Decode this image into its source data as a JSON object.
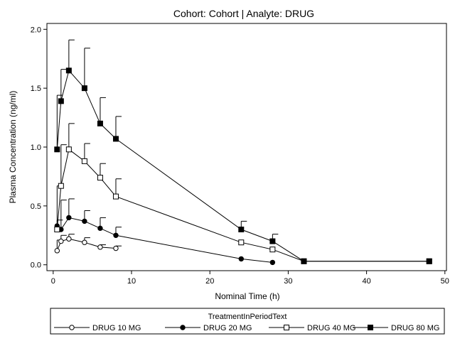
{
  "chart_data": {
    "type": "line",
    "title": "Cohort: Cohort | Analyte: DRUG",
    "xlabel": "Nominal Time (h)",
    "ylabel": "Plasma Concentration (ng/ml)",
    "xlim": [
      -0.8,
      50.2
    ],
    "ylim": [
      -0.05,
      2.05
    ],
    "xticks": [
      0,
      10,
      20,
      30,
      40,
      50
    ],
    "yticks": [
      0.0,
      0.5,
      1.0,
      1.5,
      2.0
    ],
    "ytick_labels": [
      "0.0",
      "0.5",
      "1.0",
      "1.5",
      "2.0"
    ],
    "grid": false,
    "legend": {
      "title": "TreatmentInPeriodText",
      "placement": "bottom"
    },
    "series": [
      {
        "name": "DRUG 10 MG",
        "marker": "open-circle",
        "x": [
          0.5,
          1,
          2,
          4,
          6,
          8
        ],
        "y": [
          0.12,
          0.2,
          0.22,
          0.19,
          0.15,
          0.14
        ],
        "err_upper": [
          0.21,
          0.25,
          0.26,
          0.23,
          0.17,
          0.16
        ]
      },
      {
        "name": "DRUG 20 MG",
        "marker": "filled-circle",
        "x": [
          0.5,
          1,
          2,
          4,
          6,
          8,
          24,
          28
        ],
        "y": [
          0.33,
          0.3,
          0.4,
          0.37,
          0.31,
          0.25,
          0.05,
          0.02
        ],
        "err_upper": [
          0.38,
          0.55,
          0.56,
          0.46,
          0.4,
          0.32,
          null,
          null
        ]
      },
      {
        "name": "DRUG 40 MG",
        "marker": "open-square",
        "x": [
          0.5,
          1,
          2,
          4,
          6,
          8,
          24,
          28,
          32,
          48
        ],
        "y": [
          0.3,
          0.67,
          0.98,
          0.88,
          0.74,
          0.58,
          0.19,
          0.13,
          0.03,
          0.03
        ],
        "err_upper": [
          0.67,
          1.02,
          1.2,
          1.03,
          0.86,
          0.73,
          null,
          null,
          null,
          null
        ]
      },
      {
        "name": "DRUG 80 MG",
        "marker": "filled-square",
        "x": [
          0.5,
          1,
          2,
          4,
          6,
          8,
          24,
          28,
          32,
          48
        ],
        "y": [
          0.98,
          1.39,
          1.65,
          1.5,
          1.2,
          1.07,
          0.3,
          0.2,
          0.03,
          0.03
        ],
        "err_upper": [
          1.44,
          1.66,
          1.91,
          1.84,
          1.42,
          1.26,
          0.37,
          0.26,
          null,
          null
        ]
      }
    ],
    "colors": {
      "line": "#000000",
      "background": "#ffffff"
    }
  }
}
